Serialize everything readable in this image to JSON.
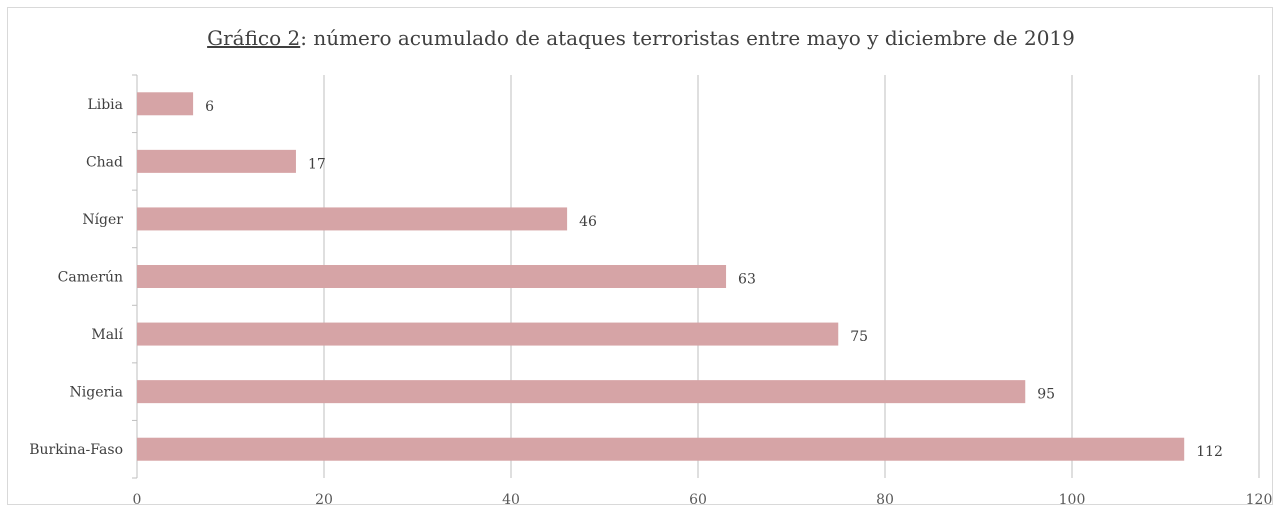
{
  "chart_data": {
    "type": "bar",
    "orientation": "horizontal",
    "title_lead": "Gráfico 2",
    "title_rest": ": número acumulado de ataques terroristas entre mayo y diciembre de 2019",
    "categories": [
      "Libia",
      "Chad",
      "Níger",
      "Camerún",
      "Malí",
      "Nigeria",
      "Burkina-Faso"
    ],
    "values": [
      6,
      17,
      46,
      63,
      75,
      95,
      112
    ],
    "xlim": [
      0,
      120
    ],
    "xticks": [
      0,
      20,
      40,
      60,
      80,
      100,
      120
    ],
    "grid": "vertical",
    "legend": "none",
    "bar_color": "#d6a4a6",
    "grid_color": "#bfbfbf"
  }
}
